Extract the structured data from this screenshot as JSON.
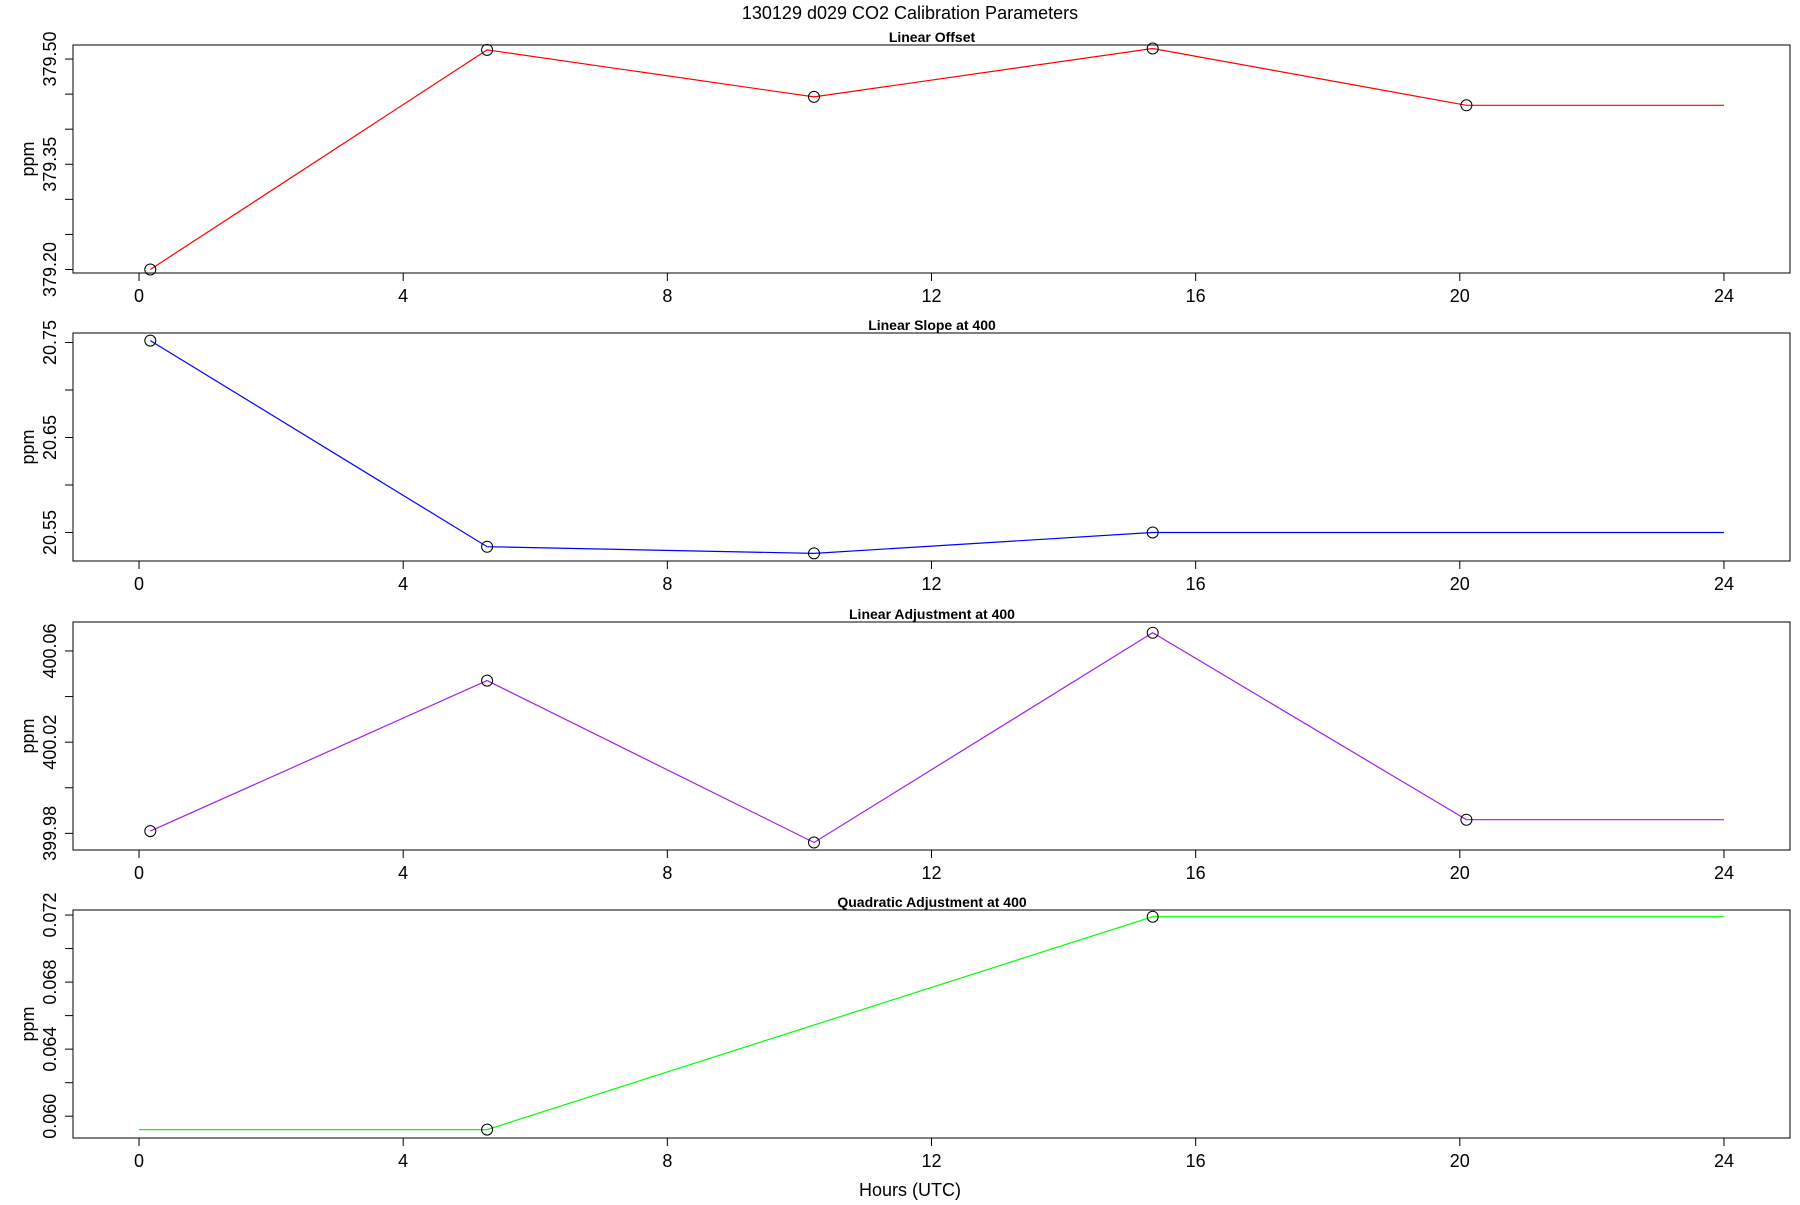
{
  "title": "130129   d029   CO2 Calibration Parameters",
  "xlabel": "Hours (UTC)",
  "chart_data": [
    {
      "type": "line",
      "title": "Linear Offset",
      "xlabel": "Hours (UTC)",
      "ylabel": "ppm",
      "color": "#ff0000",
      "xlim": [
        -1,
        25
      ],
      "ylim": [
        379.195,
        379.52
      ],
      "xticks": [
        0,
        4,
        8,
        12,
        16,
        20,
        24
      ],
      "yticks": [
        379.2,
        379.35,
        379.5
      ],
      "yticks_minor": [
        379.25,
        379.3,
        379.4,
        379.45
      ],
      "ytick_labels": [
        "379.20",
        "379.35",
        "379.50"
      ],
      "x": [
        0.17,
        5.27,
        10.22,
        15.35,
        20.1,
        24.0
      ],
      "y": [
        379.2,
        379.513,
        379.446,
        379.515,
        379.434,
        379.434
      ],
      "markers": [
        true,
        true,
        true,
        true,
        true,
        false
      ]
    },
    {
      "type": "line",
      "title": "Linear Slope at 400",
      "xlabel": "Hours (UTC)",
      "ylabel": "ppm",
      "color": "#0000ff",
      "xlim": [
        -1,
        25
      ],
      "ylim": [
        20.52,
        20.76
      ],
      "xticks": [
        0,
        4,
        8,
        12,
        16,
        20,
        24
      ],
      "yticks": [
        20.55,
        20.65,
        20.75
      ],
      "yticks_minor": [
        20.6,
        20.7
      ],
      "ytick_labels": [
        "20.55",
        "20.65",
        "20.75"
      ],
      "x": [
        0.17,
        5.27,
        10.22,
        15.35,
        24.0
      ],
      "y": [
        20.752,
        20.535,
        20.528,
        20.55,
        20.55
      ],
      "markers": [
        true,
        true,
        true,
        true,
        false
      ]
    },
    {
      "type": "line",
      "title": "Linear Adjustment at 400",
      "xlabel": "Hours (UTC)",
      "ylabel": "ppm",
      "color": "#a020f0",
      "xlim": [
        -1,
        25
      ],
      "ylim": [
        399.9727,
        400.0727
      ],
      "xticks": [
        0,
        4,
        8,
        12,
        16,
        20,
        24
      ],
      "yticks": [
        399.98,
        400.02,
        400.06
      ],
      "yticks_minor": [
        400.0,
        400.04
      ],
      "ytick_labels": [
        "399.98",
        "400.02",
        "400.06"
      ],
      "x": [
        0.17,
        5.27,
        10.22,
        15.35,
        20.1,
        24.0
      ],
      "y": [
        399.981,
        400.047,
        399.976,
        400.068,
        399.986,
        399.986
      ],
      "markers": [
        true,
        true,
        true,
        true,
        true,
        false
      ]
    },
    {
      "type": "line",
      "title": "Quadratic Adjustment at 400",
      "xlabel": "Hours (UTC)",
      "ylabel": "ppm",
      "color": "#00ff00",
      "xlim": [
        -1,
        25
      ],
      "ylim": [
        0.0587,
        0.0723
      ],
      "xticks": [
        0,
        4,
        8,
        12,
        16,
        20,
        24
      ],
      "yticks": [
        0.06,
        0.064,
        0.068,
        0.072
      ],
      "yticks_minor": [
        0.062,
        0.066,
        0.07
      ],
      "ytick_labels": [
        "0.060",
        "0.064",
        "0.068",
        "0.072"
      ],
      "x": [
        0.0,
        5.27,
        15.35,
        24.0
      ],
      "y": [
        0.0592,
        0.0592,
        0.0719,
        0.0719
      ],
      "markers": [
        false,
        true,
        true,
        false
      ]
    }
  ]
}
